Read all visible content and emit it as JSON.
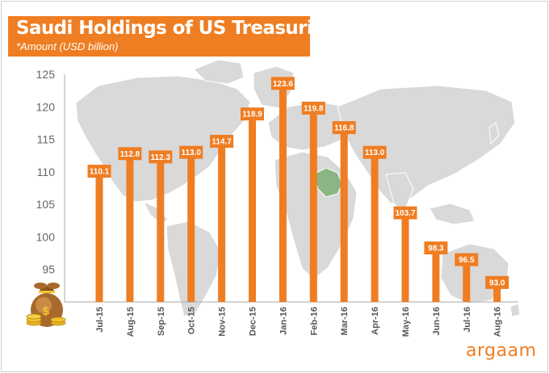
{
  "header": {
    "title": "Saudi Holdings of US Treasuries",
    "subtitle": "*Amount  (USD billion)"
  },
  "brand": {
    "name": "argaam"
  },
  "colors": {
    "accent": "#ef7d22",
    "map": "#d9d9d9",
    "highlight": "#8bb584"
  },
  "icons": {
    "corner": "money-bag-coins-icon"
  },
  "chart_data": {
    "type": "bar",
    "title": "Saudi Holdings of US Treasuries",
    "subtitle": "*Amount  (USD billion)",
    "xlabel": "",
    "ylabel": "",
    "ylim": [
      90,
      125
    ],
    "yticks": [
      95,
      100,
      105,
      110,
      115,
      120,
      125
    ],
    "grid": false,
    "categories": [
      "Jul-15",
      "Aug-15",
      "Sep-15",
      "Oct-15",
      "Nov-15",
      "Dec-15",
      "Jan-16",
      "Feb-16",
      "Mar-16",
      "Apr-16",
      "May-16",
      "Jun-16",
      "Jul-16",
      "Aug-16"
    ],
    "values": [
      110.1,
      112.8,
      112.3,
      113.0,
      114.7,
      118.9,
      123.6,
      119.8,
      116.8,
      113.0,
      103.7,
      98.3,
      96.5,
      93.0
    ],
    "labels": [
      "110.1",
      "112.8",
      "112.3",
      "113.0",
      "114.7",
      "118.9",
      "123.6",
      "119.8",
      "116.8",
      "113.0",
      "103.7",
      "98.3",
      "96.5",
      "93.0"
    ]
  }
}
